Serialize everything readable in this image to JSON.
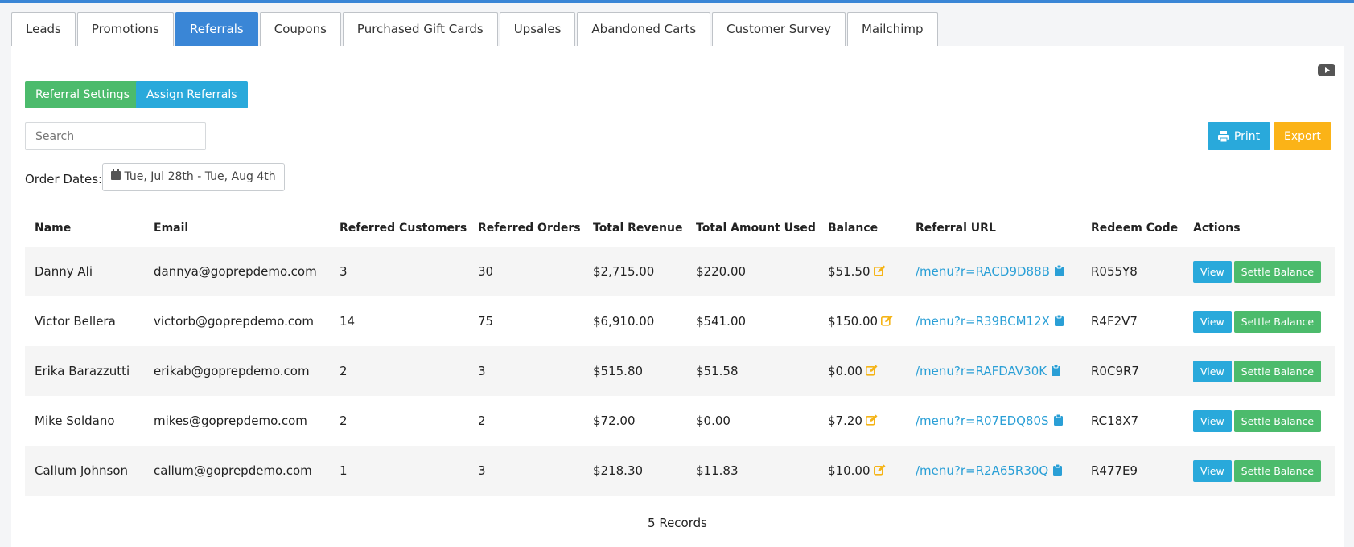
{
  "tabs": [
    {
      "label": "Leads"
    },
    {
      "label": "Promotions"
    },
    {
      "label": "Referrals",
      "active": true
    },
    {
      "label": "Coupons"
    },
    {
      "label": "Purchased Gift Cards"
    },
    {
      "label": "Upsales"
    },
    {
      "label": "Abandoned Carts"
    },
    {
      "label": "Customer Survey"
    },
    {
      "label": "Mailchimp"
    }
  ],
  "toolbar": {
    "referral_settings": "Referral Settings",
    "assign_referrals": "Assign Referrals",
    "search_placeholder": "Search",
    "print": "Print",
    "export": "Export",
    "order_dates_label": "Order Dates:",
    "order_dates": "Tue, Jul 28th - Tue, Aug 4th"
  },
  "table": {
    "headers": [
      "Name",
      "Email",
      "Referred Customers",
      "Referred Orders",
      "Total Revenue",
      "Total Amount Used",
      "Balance",
      "Referral URL",
      "Redeem Code",
      "Actions"
    ],
    "rows": [
      [
        "Danny Ali",
        "dannya@goprepdemo.com",
        "3",
        "30",
        "$2,715.00",
        "$220.00",
        "$51.50",
        "/menu?r=RACD9D88B",
        "R055Y8"
      ],
      [
        "Victor Bellera",
        "victorb@goprepdemo.com",
        "14",
        "75",
        "$6,910.00",
        "$541.00",
        "$150.00",
        "/menu?r=R39BCM12X",
        "R4F2V7"
      ],
      [
        "Erika Barazzutti",
        "erikab@goprepdemo.com",
        "2",
        "3",
        "$515.80",
        "$51.58",
        "$0.00",
        "/menu?r=RAFDAV30K",
        "R0C9R7"
      ],
      [
        "Mike Soldano",
        "mikes@goprepdemo.com",
        "2",
        "2",
        "$72.00",
        "$0.00",
        "$7.20",
        "/menu?r=R07EDQ80S",
        "RC18X7"
      ],
      [
        "Callum Johnson",
        "callum@goprepdemo.com",
        "1",
        "3",
        "$218.30",
        "$11.83",
        "$10.00",
        "/menu?r=R2A65R30Q",
        "R477E9"
      ]
    ],
    "actions": [
      "View",
      "Settle Balance"
    ],
    "footer": "5 Records"
  }
}
